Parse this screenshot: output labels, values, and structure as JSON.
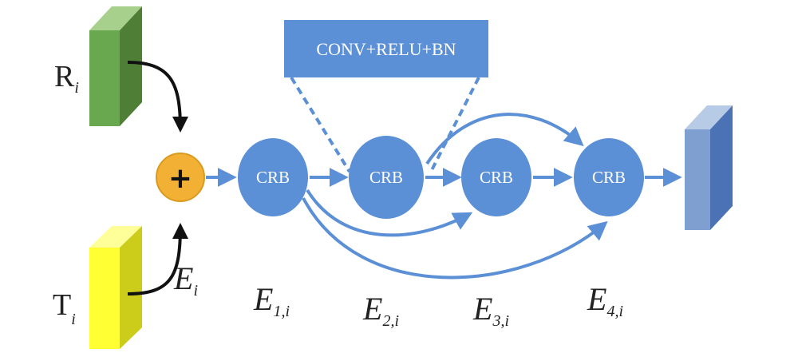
{
  "conv_box": {
    "label": "CONV+RELU+BN"
  },
  "crb_blocks": [
    "CRB",
    "CRB",
    "CRB",
    "CRB"
  ],
  "fusion": {
    "symbol": "+"
  },
  "inputs": {
    "r": {
      "main": "R",
      "sub": "i"
    },
    "t": {
      "main": "T",
      "sub": "i"
    }
  },
  "stage_labels": [
    {
      "main": "E",
      "sub": "i"
    },
    {
      "main": "E",
      "sub": "1,i"
    },
    {
      "main": "E",
      "sub": "2,i"
    },
    {
      "main": "E",
      "sub": "3,i"
    },
    {
      "main": "E",
      "sub": "4,i"
    }
  ],
  "colors": {
    "blue": "#5b8fd6",
    "arrow": "#5b8fd6",
    "green": "#6aa84f",
    "yellow": "#ffff33",
    "orange": "#f2b134",
    "output": "#7f9fd0"
  }
}
